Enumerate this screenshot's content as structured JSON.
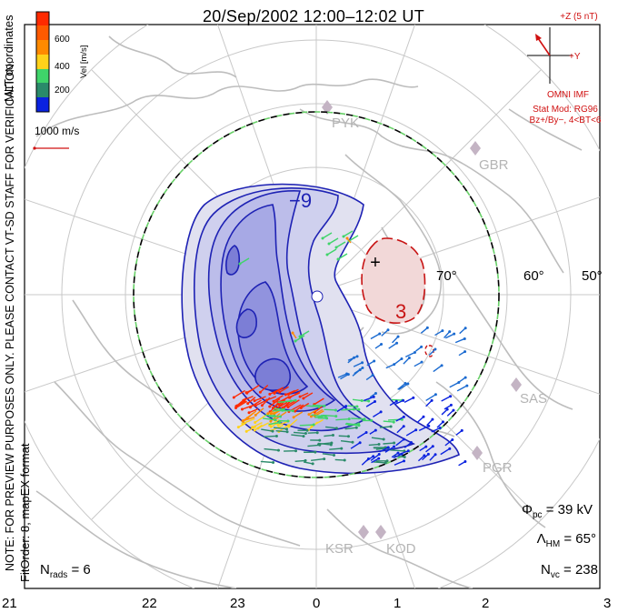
{
  "title": "20/Sep/2002 12:00–12:02 UT",
  "side_labels": {
    "coords": "MLT coordinates",
    "notice": "NOTE: FOR PREVIEW PURPOSES ONLY. PLEASE CONTACT VT-SD STAFF FOR VERIFICATION.",
    "fitorder": "FitOrder: 8, mapEX format"
  },
  "colorbar": {
    "ticks": [
      "600",
      "400",
      "200"
    ],
    "unit_label": "Vel [m/s]",
    "colors": [
      "#ff2a00",
      "#ff8a00",
      "#ffd21a",
      "#3fd46a",
      "#2a8a6a",
      "#1a6ad0",
      "#0a22e0"
    ]
  },
  "reference_vector": {
    "label": "1000 m/s",
    "color": "#d01010"
  },
  "imf": {
    "bz_label": "+Z (5 nT)",
    "by_label": "+Y",
    "source": "OMNI IMF",
    "model": "Stat Mod: RG96",
    "condition": "Bz+/By−, 4<BT<6"
  },
  "stations": [
    "PYK",
    "GBR",
    "SAS",
    "PGR",
    "KSR",
    "KOD"
  ],
  "latitude_labels": [
    "70°",
    "60°",
    "50°"
  ],
  "mlt_labels": [
    "21",
    "22",
    "23",
    "0",
    "1",
    "2",
    "3"
  ],
  "contour_labels": {
    "negative": "−9",
    "positive": "3",
    "max_marker": "+"
  },
  "stats": {
    "phi_pc": {
      "symbol": "Φ",
      "sub": "pc",
      "value": "= 39 kV"
    },
    "lambda_hm": {
      "symbol": "Λ",
      "sub": "HM",
      "value": "= 65°"
    },
    "n_vc": {
      "symbol": "N",
      "sub": "vc",
      "value": "= 238"
    },
    "n_rads": {
      "symbol": "N",
      "sub": "rads",
      "value": "= 6"
    }
  }
}
